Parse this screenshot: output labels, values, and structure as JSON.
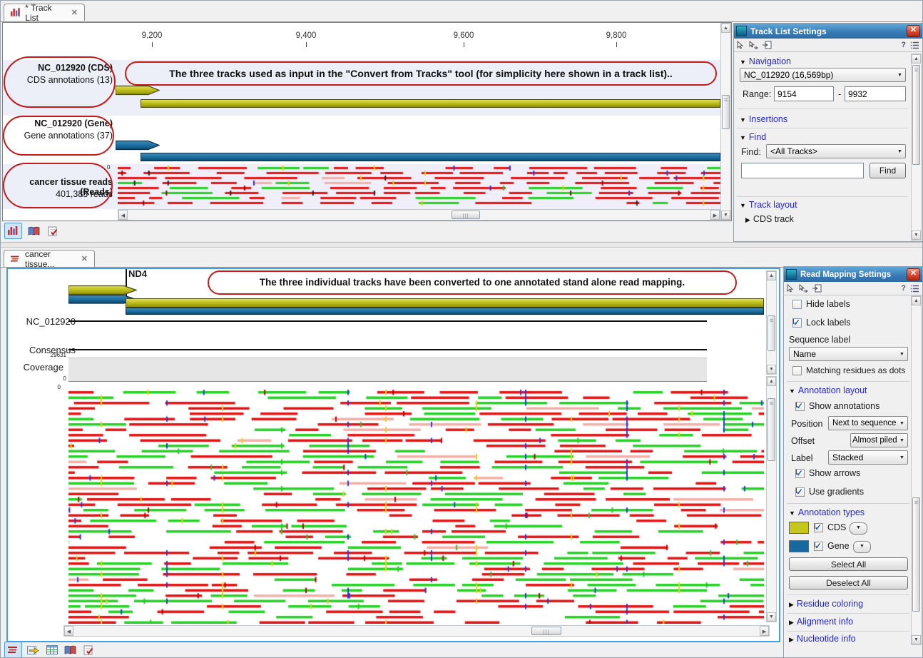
{
  "tabs": {
    "track_list": "* Track List",
    "read_mapping": "cancer tissue..."
  },
  "callouts": {
    "top": "The three tracks used as input in the \"Convert from Tracks\" tool (for simplicity here shown in a track list)..",
    "bottom": "The three individual tracks have been converted to one annotated stand alone read mapping."
  },
  "ruler": {
    "t1": "9,200",
    "t2": "9,400",
    "t3": "9,600",
    "t4": "9,800"
  },
  "tracks": {
    "cds": {
      "name": "NC_012920 (CDS)",
      "subtitle": "CDS annotations (13)"
    },
    "gene": {
      "name": "NC_012920 (Gene)",
      "subtitle": "Gene annotations (37)"
    },
    "reads": {
      "name": "cancer tissue reads (Reads)",
      "subtitle": "401,383 reads",
      "axis_zero": "0"
    }
  },
  "tls": {
    "title": "Track List Settings",
    "help": "?",
    "nav_label": "Navigation",
    "contig": "NC_012920 (16,569bp)",
    "range_label": "Range:",
    "range_from": "9154",
    "range_dash": "-",
    "range_to": "9932",
    "insertions_label": "Insertions",
    "find_section": "Find",
    "find_label": "Find:",
    "find_scope": "<All Tracks>",
    "find_query": "",
    "find_button": "Find",
    "track_layout_label": "Track layout",
    "cds_track_label": "CDS track"
  },
  "map": {
    "gene_label": "ND4",
    "reference": "NC_012920",
    "consensus": "Consensus",
    "coverage": "Coverage",
    "cov_max": "29631",
    "cov_zero": "0",
    "reads_zero": "0"
  },
  "rms": {
    "title": "Read Mapping Settings",
    "help": "?",
    "hide_labels": "Hide labels",
    "hide_labels_checked": false,
    "lock_labels": "Lock labels",
    "lock_labels_checked": true,
    "seq_label_caption": "Sequence label",
    "seq_label_value": "Name",
    "matching": "Matching residues as dots",
    "matching_checked": false,
    "ann_layout": "Annotation layout",
    "show_annotations": "Show annotations",
    "show_annotations_checked": true,
    "position_label": "Position",
    "position_value": "Next to sequence",
    "offset_label": "Offset",
    "offset_value": "Almost piled",
    "label_label": "Label",
    "label_value": "Stacked",
    "show_arrows": "Show arrows",
    "show_arrows_checked": true,
    "use_gradients": "Use gradients",
    "use_gradients_checked": true,
    "ann_types": "Annotation types",
    "cds_type": "CDS",
    "cds_color": "#c6c61c",
    "cds_checked": true,
    "gene_type": "Gene",
    "gene_color": "#17699f",
    "gene_checked": true,
    "select_all": "Select All",
    "deselect_all": "Deselect All",
    "residue_coloring": "Residue coloring",
    "alignment_info": "Alignment info",
    "nucleotide_info": "Nucleotide info"
  },
  "colors": {
    "read_red": "#e41414",
    "read_green": "#24d324",
    "read_pale": "#f4b0a8",
    "snp_yellow": "#e8d400",
    "snp_blue": "#2838e8",
    "snp_green": "#28c828",
    "snp_dark": "#222222",
    "cds_fill": "#c6c61c",
    "gene_fill": "#1a6fa5",
    "callout_red": "#c41a1a",
    "selection_blue": "#42a0e6"
  }
}
